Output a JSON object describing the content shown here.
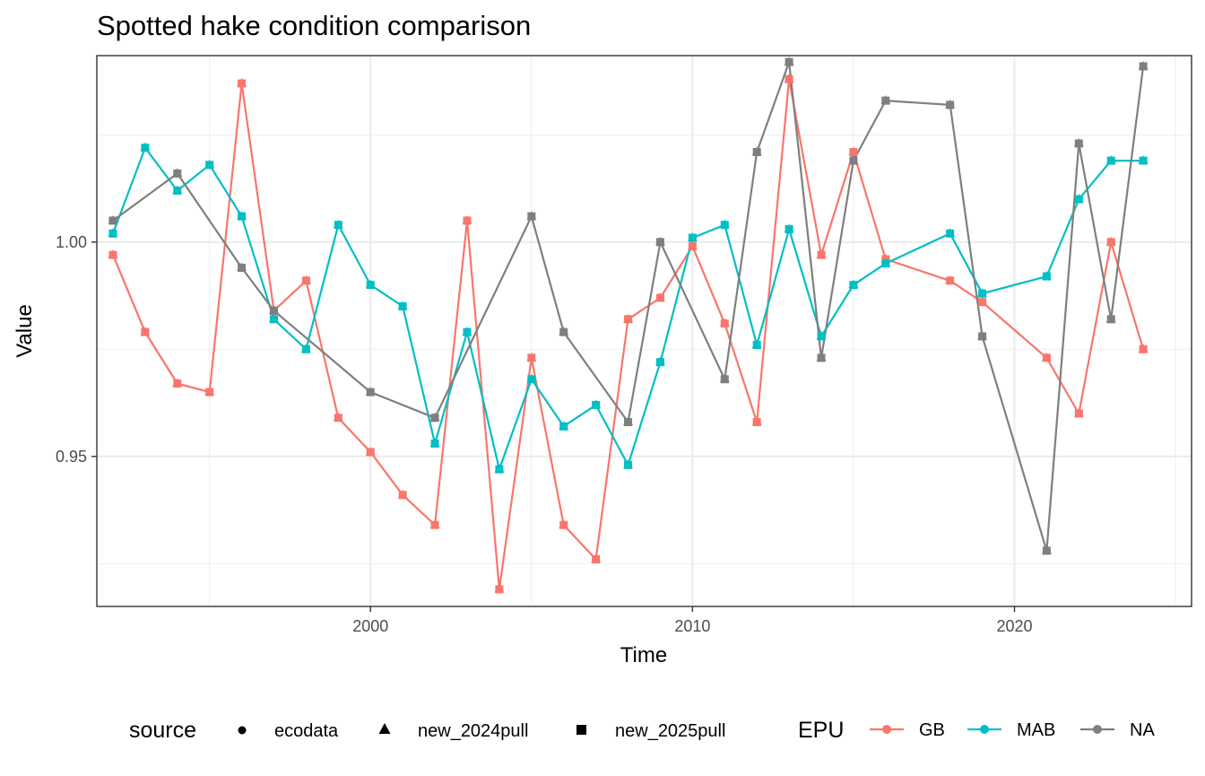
{
  "chart_data": {
    "type": "line",
    "title": "Spotted hake condition comparison",
    "xlabel": "Time",
    "ylabel": "Value",
    "xlim": [
      1991.5,
      2025.5
    ],
    "ylim": [
      0.915,
      1.0435
    ],
    "x_ticks": [
      2000,
      2010,
      2020
    ],
    "x_tick_labels": [
      "2000",
      "2010",
      "2020"
    ],
    "y_ticks": [
      0.95,
      1.0
    ],
    "y_tick_labels": [
      "0.95",
      "1.00"
    ],
    "grid": true,
    "legend_position": "bottom",
    "shape_legend": {
      "title": "source",
      "entries": [
        {
          "label": "ecodata",
          "shape": "circle"
        },
        {
          "label": "new_2024pull",
          "shape": "triangle"
        },
        {
          "label": "new_2025pull",
          "shape": "square"
        }
      ]
    },
    "color_legend": {
      "title": "EPU",
      "entries": [
        "GB",
        "MAB",
        "NA"
      ]
    },
    "series": [
      {
        "name": "GB",
        "color": "#F8766D",
        "x": [
          1992,
          1993,
          1994,
          1995,
          1996,
          1997,
          1998,
          1999,
          2000,
          2001,
          2002,
          2003,
          2004,
          2005,
          2006,
          2007,
          2008,
          2009,
          2010,
          2011,
          2012,
          2013,
          2014,
          2015,
          2016,
          2018,
          2019,
          2021,
          2022,
          2023,
          2024
        ],
        "y": [
          0.997,
          0.979,
          0.967,
          0.965,
          1.037,
          0.984,
          0.991,
          0.959,
          0.951,
          0.941,
          0.934,
          1.005,
          0.919,
          0.973,
          0.934,
          0.926,
          0.982,
          0.987,
          0.999,
          0.981,
          0.958,
          1.038,
          0.997,
          1.021,
          0.996,
          0.991,
          0.986,
          0.973,
          0.96,
          1.0,
          0.975
        ]
      },
      {
        "name": "MAB",
        "color": "#00BFC4",
        "x": [
          1992,
          1993,
          1994,
          1995,
          1996,
          1997,
          1998,
          1999,
          2000,
          2001,
          2002,
          2003,
          2004,
          2005,
          2006,
          2007,
          2008,
          2009,
          2010,
          2011,
          2012,
          2013,
          2014,
          2015,
          2016,
          2018,
          2019,
          2021,
          2022,
          2023,
          2024
        ],
        "y": [
          1.002,
          1.022,
          1.012,
          1.018,
          1.006,
          0.982,
          0.975,
          1.004,
          0.99,
          0.985,
          0.953,
          0.979,
          0.947,
          0.968,
          0.957,
          0.962,
          0.948,
          0.972,
          1.001,
          1.004,
          0.976,
          1.003,
          0.978,
          0.99,
          0.995,
          1.002,
          0.988,
          0.992,
          1.01,
          1.019,
          1.019
        ]
      },
      {
        "name": "NA",
        "color": "#7F7F7F",
        "x": [
          1992,
          1994,
          1996,
          1997,
          2000,
          2002,
          2005,
          2006,
          2008,
          2009,
          2011,
          2012,
          2013,
          2014,
          2015,
          2016,
          2018,
          2019,
          2021,
          2022,
          2023,
          2024
        ],
        "y": [
          1.005,
          1.016,
          0.994,
          0.984,
          0.965,
          0.959,
          1.006,
          0.979,
          0.958,
          1.0,
          0.968,
          1.021,
          1.042,
          0.973,
          1.019,
          1.033,
          1.032,
          0.978,
          0.928,
          1.023,
          0.982,
          1.041
        ]
      }
    ]
  }
}
